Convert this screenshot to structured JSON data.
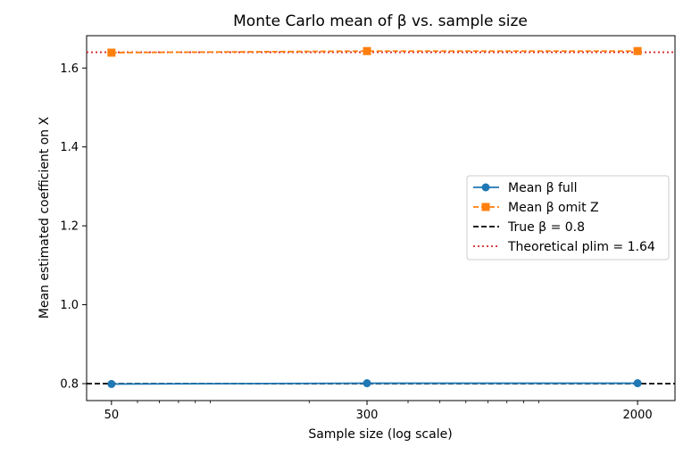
{
  "chart_data": {
    "type": "line",
    "title": "Monte Carlo mean of β vs. sample size",
    "xlabel": "Sample size (log scale)",
    "ylabel": "Mean estimated coefficient on X",
    "xscale": "log",
    "xlim": [
      42,
      2600
    ],
    "ylim": [
      0.757,
      1.682
    ],
    "xticks": [
      50,
      300,
      2000
    ],
    "xtick_labels": [
      "50",
      "300",
      "2000"
    ],
    "yticks": [
      0.8,
      1.0,
      1.2,
      1.4,
      1.6
    ],
    "ytick_labels": [
      "0.8",
      "1.0",
      "1.2",
      "1.4",
      "1.6"
    ],
    "grid": false,
    "legend_position": "center-right",
    "series": [
      {
        "name": "Mean β full",
        "x": [
          50,
          300,
          2000
        ],
        "y": [
          0.799,
          0.801,
          0.801
        ],
        "color": "#1f77b4",
        "linestyle": "solid",
        "marker": "circle"
      },
      {
        "name": "Mean β omit Z",
        "x": [
          50,
          300,
          2000
        ],
        "y": [
          1.639,
          1.643,
          1.643
        ],
        "color": "#ff7f0e",
        "linestyle": "dashed",
        "marker": "square"
      }
    ],
    "hlines": [
      {
        "name": "True β = 0.8",
        "y": 0.8,
        "color": "#000000",
        "linestyle": "dashed"
      },
      {
        "name": "Theoretical plim = 1.64",
        "y": 1.64,
        "color": "#d62728",
        "linestyle": "dotted"
      }
    ]
  }
}
